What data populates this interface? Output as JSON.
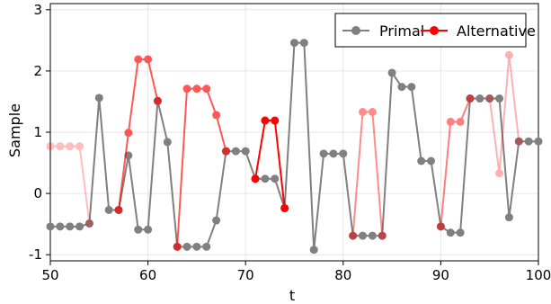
{
  "chart_data": {
    "type": "line",
    "title": "",
    "xlabel": "t",
    "ylabel": "Sample",
    "xlim": [
      50,
      100
    ],
    "ylim": [
      -1.1,
      3.1
    ],
    "x_ticks": [
      50,
      60,
      70,
      80,
      90,
      100
    ],
    "y_ticks": [
      -1,
      0,
      1,
      2,
      3
    ],
    "grid": true,
    "legend_position": "top-right",
    "colors": {
      "primal": "#808080",
      "alternative": "#ff0000"
    },
    "series": [
      {
        "name": "Primal",
        "x": [
          50,
          51,
          52,
          53,
          54,
          55,
          56,
          57,
          58,
          59,
          60,
          61,
          62,
          63,
          64,
          65,
          66,
          67,
          68,
          69,
          70,
          71,
          72,
          73,
          74,
          75,
          76,
          77,
          78,
          79,
          80,
          81,
          82,
          83,
          84,
          85,
          86,
          87,
          88,
          89,
          90,
          91,
          92,
          93,
          94,
          95,
          96,
          97,
          98,
          99,
          100
        ],
        "y": [
          -0.54,
          -0.54,
          -0.54,
          -0.54,
          -0.49,
          1.56,
          -0.27,
          -0.27,
          0.62,
          -0.59,
          -0.59,
          1.51,
          0.84,
          -0.87,
          -0.87,
          -0.87,
          -0.87,
          -0.44,
          0.69,
          0.69,
          0.69,
          0.24,
          0.24,
          0.24,
          -0.24,
          2.46,
          2.46,
          -0.92,
          0.65,
          0.65,
          0.65,
          -0.69,
          -0.69,
          -0.69,
          -0.69,
          1.97,
          1.74,
          1.74,
          0.53,
          0.53,
          -0.54,
          -0.64,
          -0.64,
          1.55,
          1.55,
          1.55,
          1.55,
          -0.39,
          0.85,
          0.85,
          0.85
        ]
      },
      {
        "name": "Alternative",
        "segments": [
          {
            "x": [
              50,
              51,
              52,
              53,
              54
            ],
            "y": [
              0.77,
              0.77,
              0.77,
              0.77,
              -0.49
            ],
            "opacity": 0.25
          },
          {
            "x": [
              57,
              58,
              59,
              60,
              61
            ],
            "y": [
              -0.27,
              0.99,
              2.19,
              2.19,
              1.51
            ],
            "opacity": 0.65
          },
          {
            "x": [
              63,
              64,
              65,
              66,
              67,
              68
            ],
            "y": [
              -0.87,
              1.71,
              1.71,
              1.71,
              1.28,
              0.69
            ],
            "opacity": 0.65
          },
          {
            "x": [
              71,
              72,
              73,
              74
            ],
            "y": [
              0.24,
              1.19,
              1.19,
              -0.24
            ],
            "opacity": 1.0
          },
          {
            "x": [
              81,
              82,
              83,
              84
            ],
            "y": [
              -0.69,
              1.33,
              1.33,
              -0.69
            ],
            "opacity": 0.45
          },
          {
            "x": [
              90,
              91,
              92,
              93
            ],
            "y": [
              -0.54,
              1.17,
              1.17,
              1.55
            ],
            "opacity": 0.5
          },
          {
            "x": [
              95,
              96,
              97,
              98
            ],
            "y": [
              1.55,
              0.33,
              2.26,
              0.85
            ],
            "opacity": 0.3
          }
        ]
      }
    ]
  }
}
